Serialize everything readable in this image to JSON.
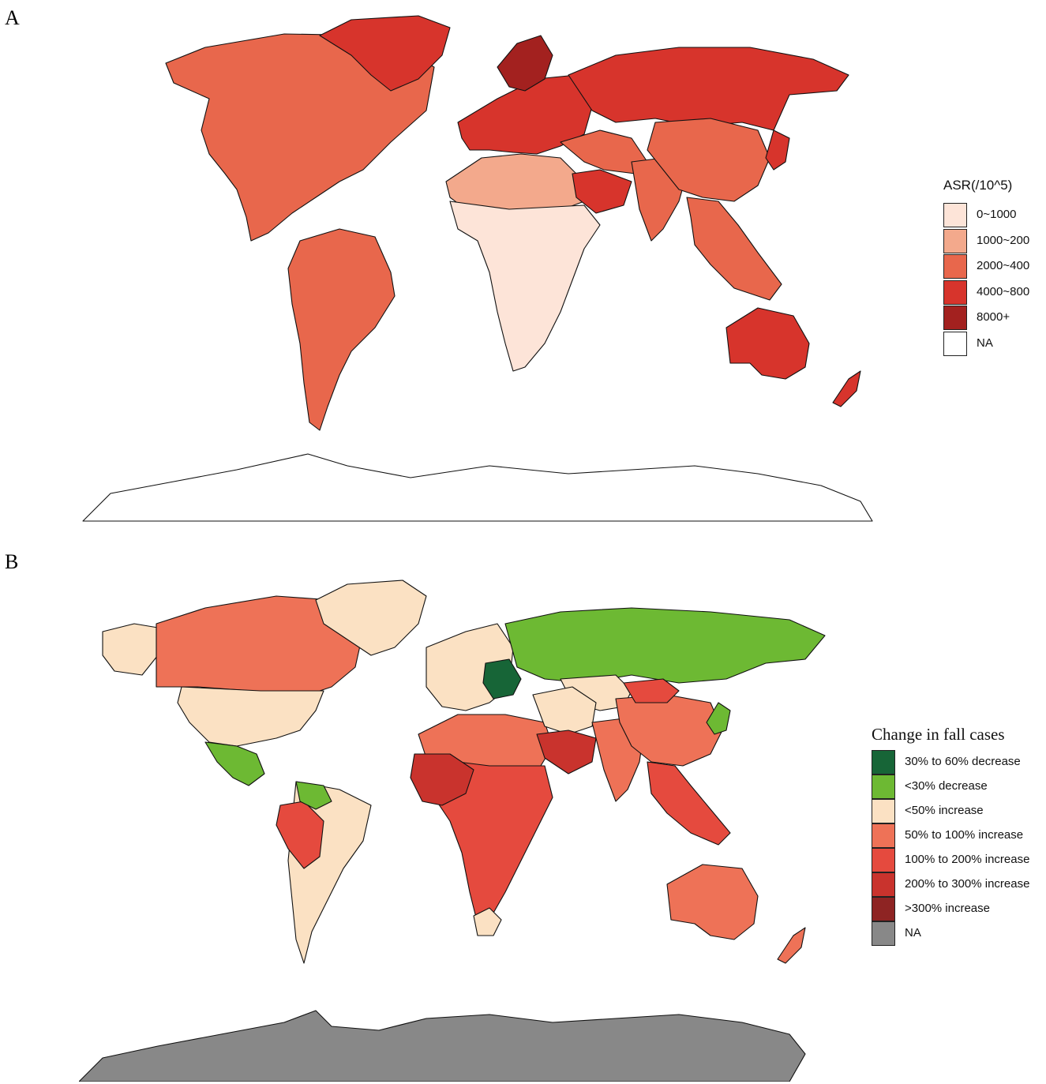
{
  "panels": [
    {
      "letter": "A",
      "legend": {
        "title": "ASR(/10^5)",
        "items": [
          {
            "label": "0~1000",
            "color": "#fde4d8"
          },
          {
            "label": "1000~200",
            "color": "#f3a98c"
          },
          {
            "label": "2000~400",
            "color": "#e8674c"
          },
          {
            "label": "4000~800",
            "color": "#d7342c"
          },
          {
            "label": "8000+",
            "color": "#a3211f"
          },
          {
            "label": "NA",
            "color": "#ffffff"
          }
        ]
      },
      "regions": [
        {
          "name": "north-america",
          "color": "#e8674c"
        },
        {
          "name": "south-america",
          "color": "#e8674c"
        },
        {
          "name": "greenland",
          "color": "#d7342c"
        },
        {
          "name": "europe",
          "color": "#d7342c"
        },
        {
          "name": "scandinavia",
          "color": "#a3211f"
        },
        {
          "name": "russia",
          "color": "#d7342c"
        },
        {
          "name": "north-africa",
          "color": "#f3a98c"
        },
        {
          "name": "sub-saharan-africa",
          "color": "#fde4d8"
        },
        {
          "name": "middle-east",
          "color": "#e8674c"
        },
        {
          "name": "saudi-arabia",
          "color": "#d7342c"
        },
        {
          "name": "south-asia",
          "color": "#e8674c"
        },
        {
          "name": "china",
          "color": "#e8674c"
        },
        {
          "name": "southeast-asia",
          "color": "#e8674c"
        },
        {
          "name": "japan",
          "color": "#d7342c"
        },
        {
          "name": "australia",
          "color": "#d7342c"
        },
        {
          "name": "new-zealand",
          "color": "#d7342c"
        },
        {
          "name": "antarctica",
          "color": "#ffffff"
        }
      ]
    },
    {
      "letter": "B",
      "legend": {
        "title": "Change in fall cases",
        "items": [
          {
            "label": "30% to 60% decrease",
            "color": "#176537"
          },
          {
            "label": "<30% decrease",
            "color": "#6db933"
          },
          {
            "label": "<50% increase",
            "color": "#fbe1c3"
          },
          {
            "label": "50% to 100% increase",
            "color": "#ee7257"
          },
          {
            "label": "100% to 200% increase",
            "color": "#e54a3e"
          },
          {
            "label": "200% to 300% increase",
            "color": "#c9332d"
          },
          {
            "label": ">300% increase",
            "color": "#8e2423"
          },
          {
            "label": "NA",
            "color": "#888888"
          }
        ]
      },
      "regions": [
        {
          "name": "alaska",
          "color": "#fbe1c3"
        },
        {
          "name": "canada",
          "color": "#ee7257"
        },
        {
          "name": "usa",
          "color": "#fbe1c3"
        },
        {
          "name": "mexico",
          "color": "#6db933"
        },
        {
          "name": "south-america",
          "color": "#fbe1c3"
        },
        {
          "name": "peru-bolivia",
          "color": "#e54a3e"
        },
        {
          "name": "venezuela",
          "color": "#6db933"
        },
        {
          "name": "greenland",
          "color": "#fbe1c3"
        },
        {
          "name": "europe",
          "color": "#fbe1c3"
        },
        {
          "name": "eastern-europe",
          "color": "#176537"
        },
        {
          "name": "russia",
          "color": "#6db933"
        },
        {
          "name": "central-asia",
          "color": "#fbe1c3"
        },
        {
          "name": "north-africa",
          "color": "#ee7257"
        },
        {
          "name": "sub-saharan-africa",
          "color": "#e54a3e"
        },
        {
          "name": "west-africa",
          "color": "#c9332d"
        },
        {
          "name": "southern-africa",
          "color": "#fbe1c3"
        },
        {
          "name": "middle-east",
          "color": "#fbe1c3"
        },
        {
          "name": "saudi-arabia",
          "color": "#c9332d"
        },
        {
          "name": "south-asia",
          "color": "#ee7257"
        },
        {
          "name": "china",
          "color": "#ee7257"
        },
        {
          "name": "mongolia",
          "color": "#e54a3e"
        },
        {
          "name": "southeast-asia",
          "color": "#e54a3e"
        },
        {
          "name": "japan",
          "color": "#6db933"
        },
        {
          "name": "australia",
          "color": "#ee7257"
        },
        {
          "name": "new-zealand",
          "color": "#ee7257"
        },
        {
          "name": "antarctica",
          "color": "#888888"
        }
      ]
    }
  ]
}
